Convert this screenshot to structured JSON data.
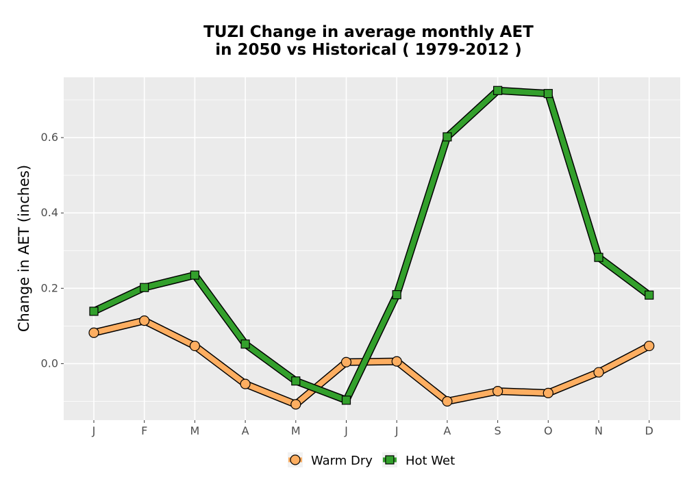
{
  "chart_data": {
    "type": "line",
    "title_line1": "TUZI  Change in average monthly AET",
    "title_line2": "in 2050 vs Historical ( 1979-2012 )",
    "xlabel": "",
    "ylabel": "Change in AET (inches)",
    "categories": [
      "J",
      "F",
      "M",
      "A",
      "M",
      "J",
      "J",
      "A",
      "S",
      "O",
      "N",
      "D"
    ],
    "ylim": [
      -0.15,
      0.76
    ],
    "yticks": [
      0.0,
      0.2,
      0.4,
      0.6
    ],
    "ytick_labels": [
      "0.0",
      "0.2",
      "0.4",
      "0.6"
    ],
    "grid": true,
    "legend_position": "bottom",
    "series": [
      {
        "name": "Warm Dry",
        "values": [
          0.082,
          0.114,
          0.047,
          -0.054,
          -0.108,
          0.004,
          0.006,
          -0.1,
          -0.073,
          -0.078,
          -0.023,
          0.047
        ],
        "color": "#fdae61",
        "marker": "circle"
      },
      {
        "name": "Hot Wet",
        "values": [
          0.139,
          0.202,
          0.235,
          0.052,
          -0.046,
          -0.097,
          0.183,
          0.602,
          0.725,
          0.717,
          0.282,
          0.182
        ],
        "color": "#33a02c",
        "marker": "square"
      }
    ]
  }
}
